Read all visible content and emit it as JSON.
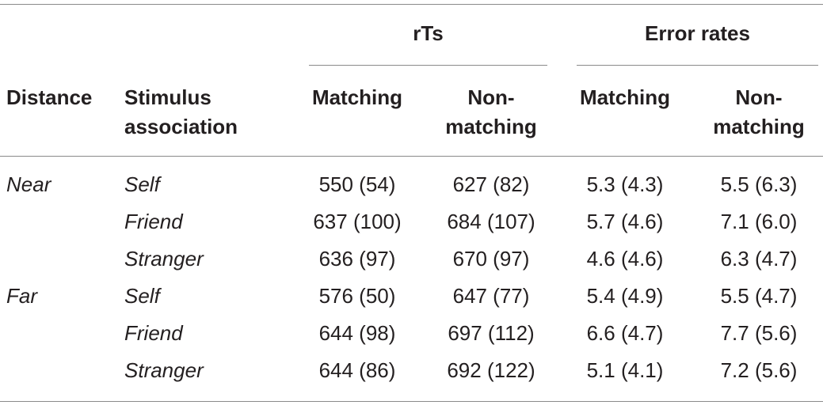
{
  "table": {
    "group_headers": [
      "rTs",
      "Error rates"
    ],
    "columns": [
      "Distance",
      "Stimulus association",
      "Matching",
      "Non-matching",
      "Matching",
      "Non-matching"
    ],
    "groups": [
      {
        "distance": "Near",
        "rows": [
          {
            "stimulus": "Self",
            "values": [
              "550 (54)",
              "627 (82)",
              "5.3 (4.3)",
              "5.5 (6.3)"
            ]
          },
          {
            "stimulus": "Friend",
            "values": [
              "637 (100)",
              "684 (107)",
              "5.7 (4.6)",
              "7.1 (6.0)"
            ]
          },
          {
            "stimulus": "Stranger",
            "values": [
              "636 (97)",
              "670 (97)",
              "4.6 (4.6)",
              "6.3 (4.7)"
            ]
          }
        ]
      },
      {
        "distance": "Far",
        "rows": [
          {
            "stimulus": "Self",
            "values": [
              "576 (50)",
              "647 (77)",
              "5.4 (4.9)",
              "5.5 (4.7)"
            ]
          },
          {
            "stimulus": "Friend",
            "values": [
              "644 (98)",
              "697 (112)",
              "6.6 (4.7)",
              "7.7 (5.6)"
            ]
          },
          {
            "stimulus": "Stranger",
            "values": [
              "644 (86)",
              "692 (122)",
              "5.1 (4.1)",
              "7.2 (5.6)"
            ]
          }
        ]
      }
    ]
  }
}
